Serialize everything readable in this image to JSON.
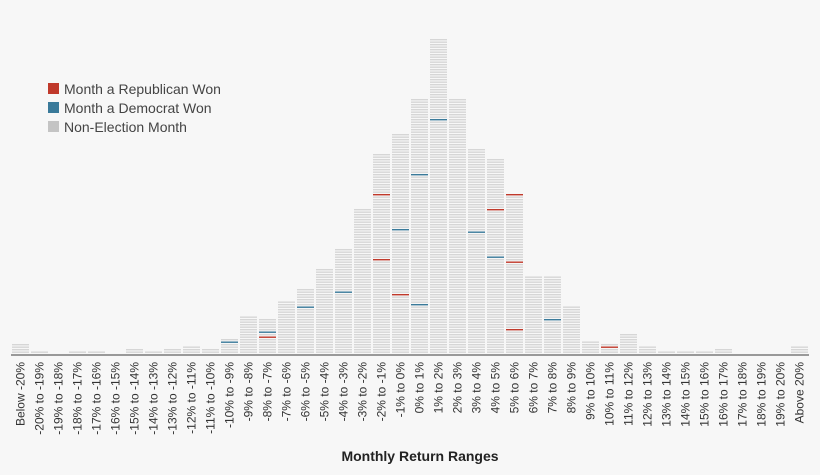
{
  "chart_data": {
    "type": "bar",
    "title": "",
    "xlabel": "Monthly Return Ranges",
    "ylabel": "",
    "grid": false,
    "legend_placement": "top-left",
    "categories": [
      "Below -20%",
      "-20% to -19%",
      "-19% to -18%",
      "-18% to -17%",
      "-17% to -16%",
      "-16% to -15%",
      "-15% to -14%",
      "-14% to -13%",
      "-13% to -12%",
      "-12% to -11%",
      "-11% to -10%",
      "-10% to -9%",
      "-9% to -8%",
      "-8% to -7%",
      "-7% to -6%",
      "-6% to -5%",
      "-5% to -4%",
      "-4% to -3%",
      "-3% to -2%",
      "-2% to -1%",
      "-1% to 0%",
      "0% to 1%",
      "1% to 2%",
      "2% to 3%",
      "3% to 4%",
      "4% to 5%",
      "5% to 6%",
      "6% to 7%",
      "7% to 8%",
      "8% to 9%",
      "9% to 10%",
      "10% to 11%",
      "11% to 12%",
      "12% to 13%",
      "13% to 14%",
      "14% to 15%",
      "15% to 16%",
      "16% to 17%",
      "17% to 18%",
      "18% to 19%",
      "19% to 20%",
      "Above 20%"
    ],
    "values": [
      4,
      1,
      0,
      1,
      1,
      0,
      2,
      1,
      2,
      3,
      2,
      6,
      15,
      14,
      21,
      26,
      34,
      42,
      58,
      80,
      88,
      102,
      126,
      102,
      82,
      78,
      64,
      31,
      31,
      19,
      5,
      4,
      8,
      3,
      1,
      1,
      1,
      2,
      0,
      0,
      0,
      3
    ],
    "series": [
      {
        "name": "Month a Republican Won",
        "color": "#c0392b",
        "months": [
          {
            "category": "-8% to -7%",
            "rank": 6
          },
          {
            "category": "-2% to -1%",
            "rank": 63
          },
          {
            "category": "-2% to -1%",
            "rank": 37
          },
          {
            "category": "-1% to 0%",
            "rank": 23
          },
          {
            "category": "4% to 5%",
            "rank": 57
          },
          {
            "category": "5% to 6%",
            "rank": 63
          },
          {
            "category": "5% to 6%",
            "rank": 36
          },
          {
            "category": "5% to 6%",
            "rank": 9
          },
          {
            "category": "10% to 11%",
            "rank": 2
          },
          {
            "category": "12% to 13%",
            "rank": 3
          }
        ]
      },
      {
        "name": "Month a Democrat Won",
        "color": "#3a7a9a",
        "months": [
          {
            "category": "-10% to -9%",
            "rank": 4
          },
          {
            "category": "-8% to -7%",
            "rank": 8
          },
          {
            "category": "-6% to -5%",
            "rank": 18
          },
          {
            "category": "-4% to -3%",
            "rank": 24
          },
          {
            "category": "-1% to 0%",
            "rank": 49
          },
          {
            "category": "0% to 1%",
            "rank": 71
          },
          {
            "category": "0% to 1%",
            "rank": 19
          },
          {
            "category": "1% to 2%",
            "rank": 93
          },
          {
            "category": "3% to 4%",
            "rank": 48
          },
          {
            "category": "4% to 5%",
            "rank": 38
          },
          {
            "category": "7% to 8%",
            "rank": 13
          }
        ]
      },
      {
        "name": "Non-Election Month",
        "color": "#c4c4c4"
      }
    ]
  }
}
